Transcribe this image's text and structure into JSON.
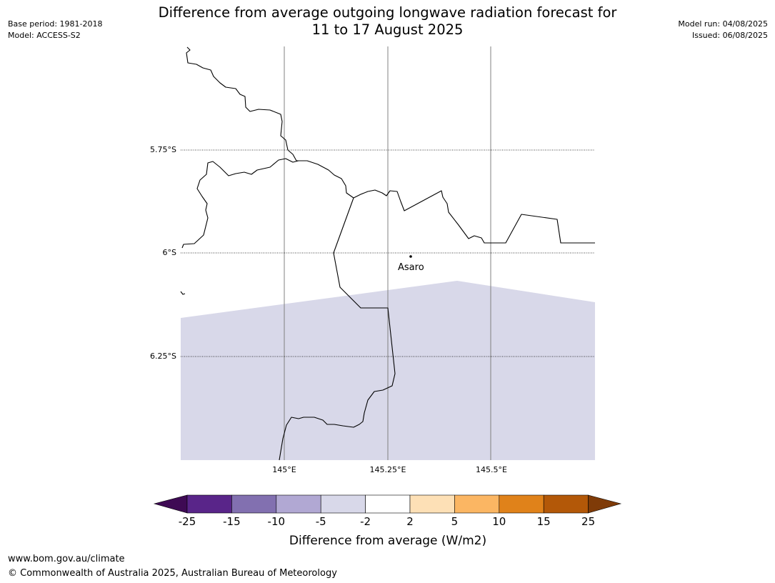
{
  "header": {
    "title_line1": "Difference from average outgoing longwave radiation forecast for",
    "title_line2": "11 to 17 August 2025",
    "base_period": "Base period: 1981-2018",
    "model": "Model: ACCESS-S2",
    "model_run": "Model run: 04/08/2025",
    "issued": "Issued: 06/08/2025"
  },
  "map": {
    "lat_labels": [
      "5.75°S",
      "6°S",
      "6.25°S"
    ],
    "lon_labels": [
      "145°E",
      "145.25°E",
      "145.5°E"
    ],
    "place_label": "Asaro",
    "shaded_class_color": "#d8d8e9"
  },
  "colorbar": {
    "tick_labels": [
      "-25",
      "-15",
      "-10",
      "-5",
      "-2",
      "2",
      "5",
      "10",
      "15",
      "25"
    ],
    "colors": [
      "#3e0a54",
      "#592589",
      "#8270b0",
      "#b1a8d3",
      "#d8d8e9",
      "#ffffff",
      "#fde0b6",
      "#fbb663",
      "#e0821a",
      "#b35808",
      "#7f3b08"
    ],
    "label": "Difference from average (W/m2)"
  },
  "footer": {
    "url": "www.bom.gov.au/climate",
    "copyright": "© Commonwealth of Australia 2025, Australian Bureau of Meteorology"
  }
}
